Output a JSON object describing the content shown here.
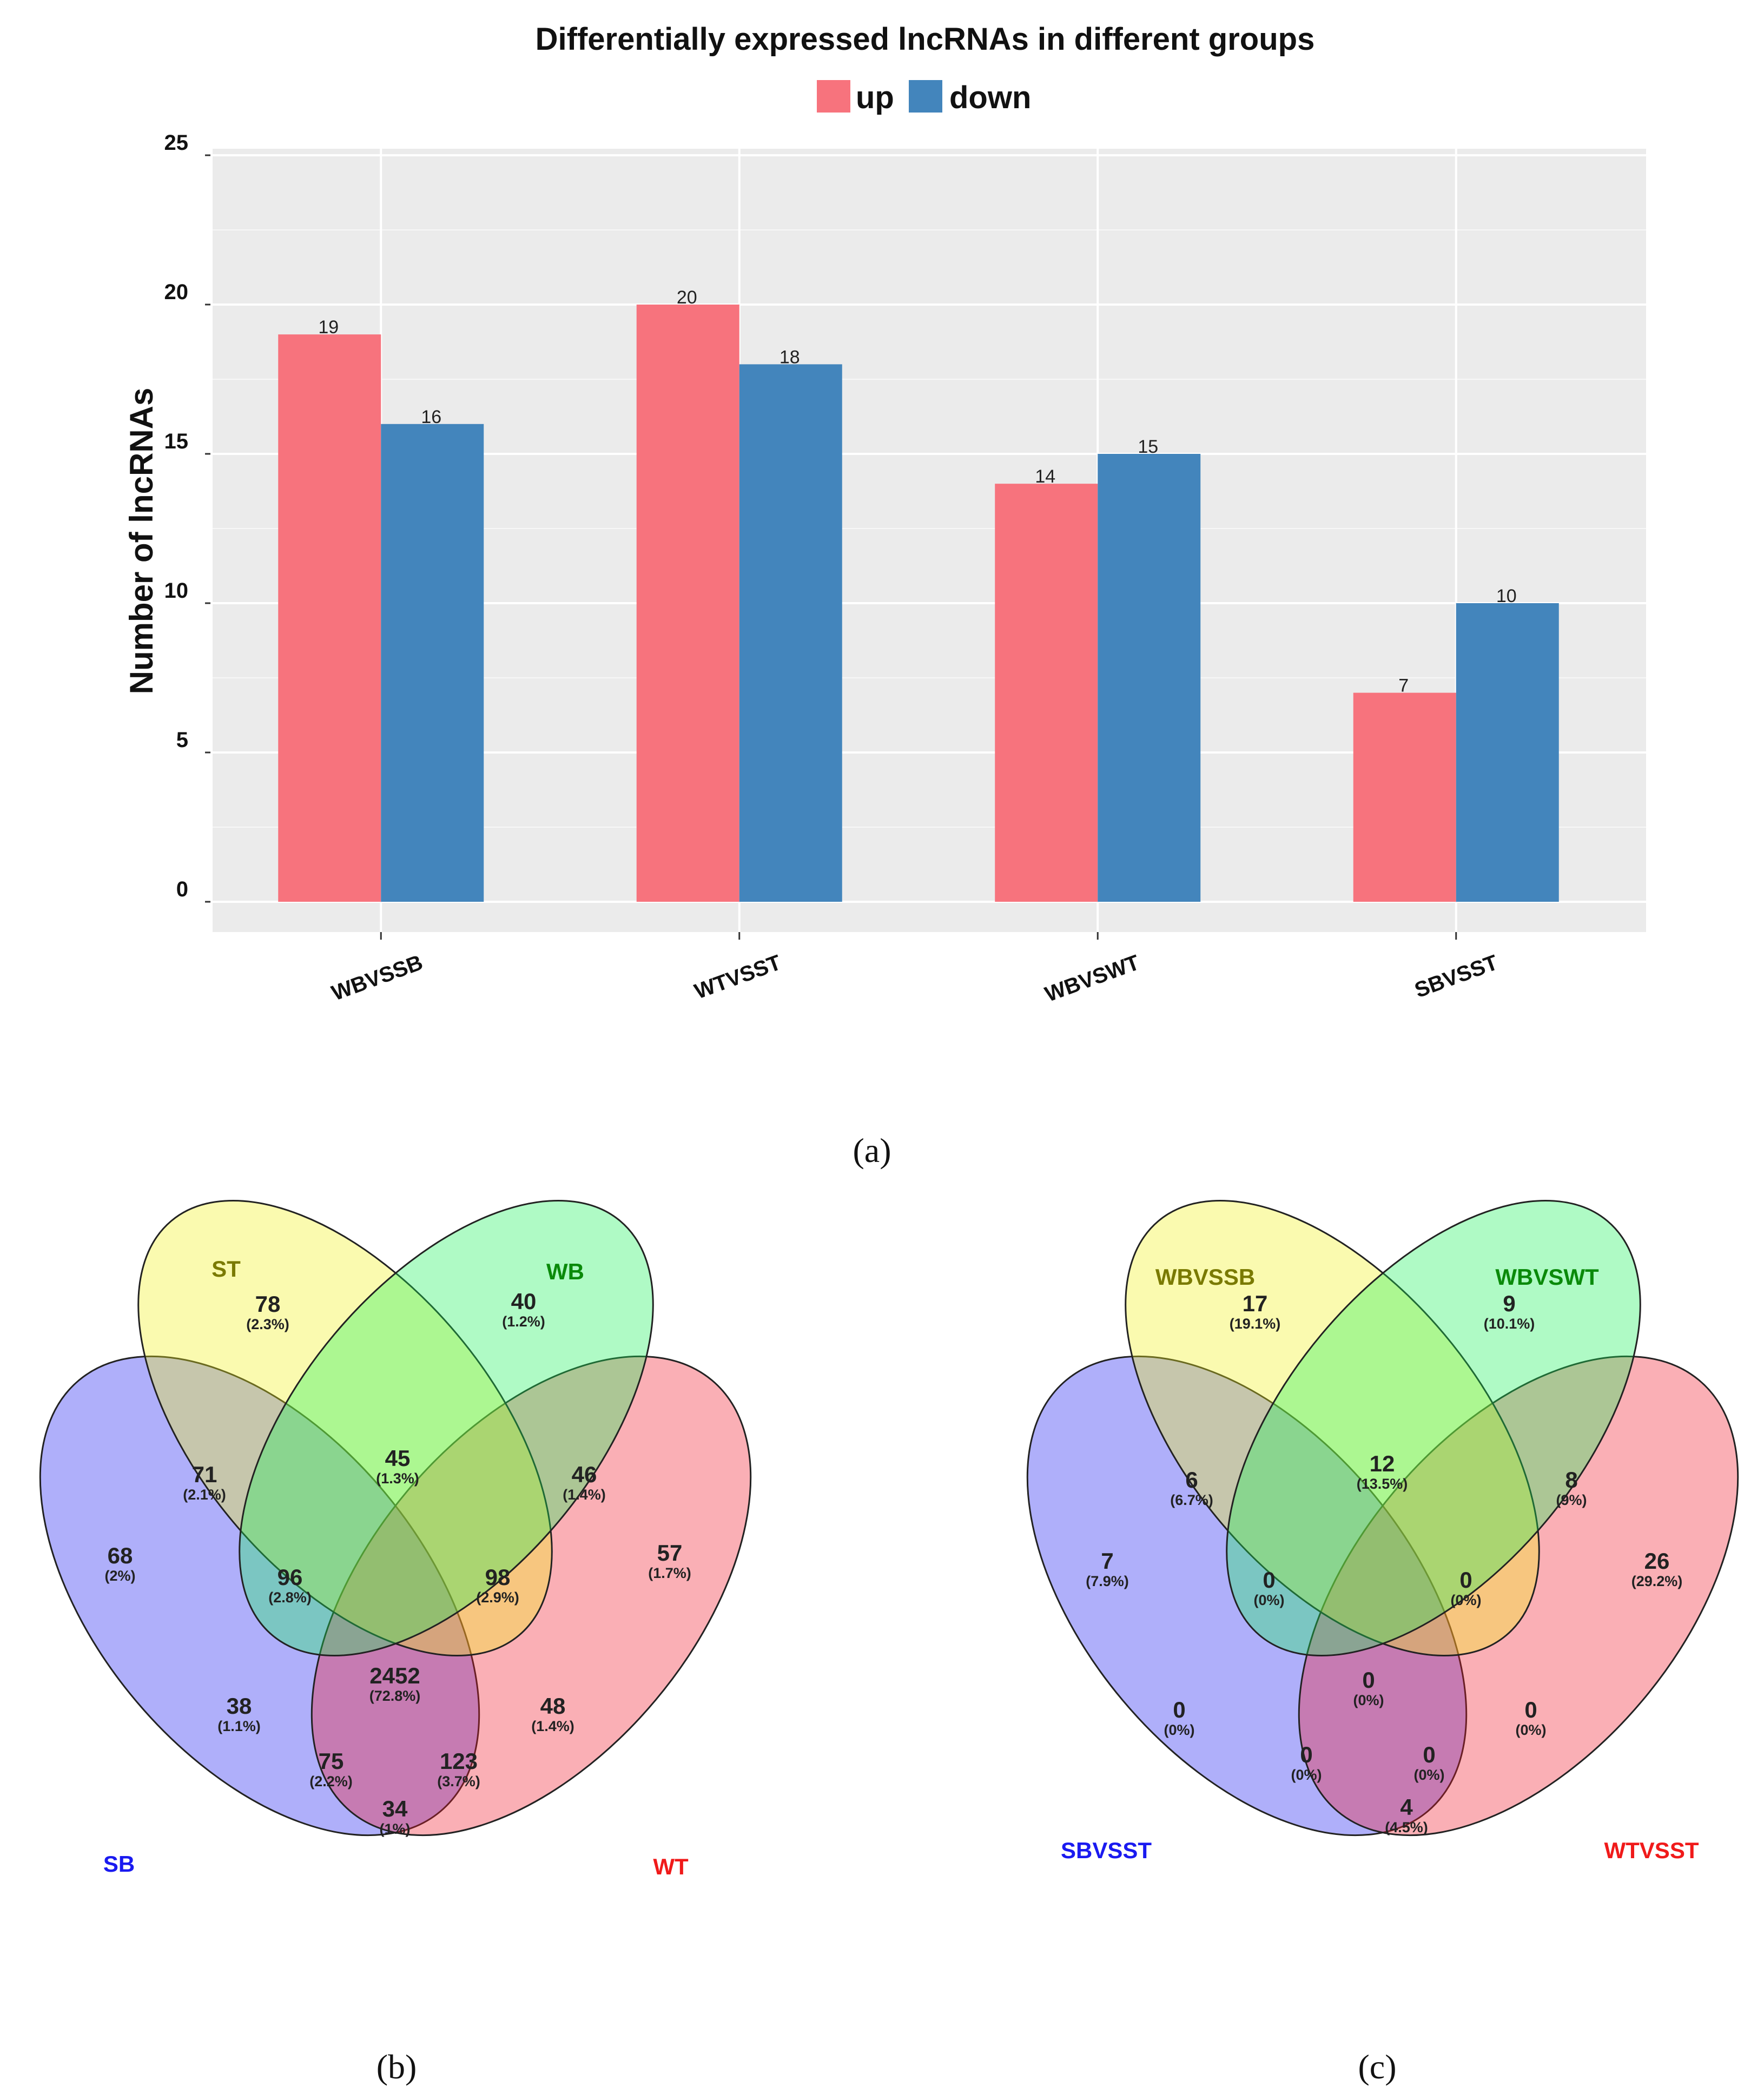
{
  "panels": {
    "a": "(a)",
    "b": "(b)",
    "c": "(c)"
  },
  "chart_data": [
    {
      "type": "bar",
      "title": "Differentially expressed lncRNAs in different groups",
      "xlabel": "",
      "ylabel": "Number of lncRNAs",
      "categories": [
        "WBVSSB",
        "WTVSST",
        "WBVSWT",
        "SBVSST"
      ],
      "series": [
        {
          "name": "up",
          "color": "#F7737D",
          "values": [
            19,
            20,
            14,
            7
          ]
        },
        {
          "name": "down",
          "color": "#4385BC",
          "values": [
            16,
            18,
            15,
            10
          ]
        }
      ],
      "ylim": [
        0,
        25
      ],
      "yticks": [
        0,
        5,
        10,
        15,
        20,
        25
      ],
      "grid": true,
      "legend": "top",
      "background": "#EBEBEB"
    },
    {
      "type": "venn",
      "sets": [
        {
          "name": "SB",
          "color": "#1A1AF0"
        },
        {
          "name": "ST",
          "color": "#7A7A00"
        },
        {
          "name": "WB",
          "color": "#0A8A0A"
        },
        {
          "name": "WT",
          "color": "#F01A1A"
        }
      ],
      "regions": {
        "ST_only": {
          "count": "78",
          "pct": "(2.3%)"
        },
        "WB_only": {
          "count": "40",
          "pct": "(1.2%)"
        },
        "SB_only": {
          "count": "68",
          "pct": "(2%)"
        },
        "WT_only": {
          "count": "57",
          "pct": "(1.7%)"
        },
        "SB_ST": {
          "count": "71",
          "pct": "(2.1%)"
        },
        "ST_WB": {
          "count": "45",
          "pct": "(1.3%)"
        },
        "WB_WT": {
          "count": "46",
          "pct": "(1.4%)"
        },
        "SB_ST_WB": {
          "count": "96",
          "pct": "(2.8%)"
        },
        "ST_WB_WT": {
          "count": "98",
          "pct": "(2.9%)"
        },
        "SB_WB": {
          "count": "38",
          "pct": "(1.1%)"
        },
        "ALL": {
          "count": "2452",
          "pct": "(72.8%)"
        },
        "ST_WT": {
          "count": "48",
          "pct": "(1.4%)"
        },
        "SB_WB_WT": {
          "count": "75",
          "pct": "(2.2%)"
        },
        "SB_ST_WT": {
          "count": "123",
          "pct": "(3.7%)"
        },
        "SB_WT": {
          "count": "34",
          "pct": "(1%)"
        }
      }
    },
    {
      "type": "venn",
      "sets": [
        {
          "name": "SBVSST",
          "color": "#1A1AF0"
        },
        {
          "name": "WBVSSB",
          "color": "#7A7A00"
        },
        {
          "name": "WBVSWT",
          "color": "#0A8A0A"
        },
        {
          "name": "WTVSST",
          "color": "#F01A1A"
        }
      ],
      "regions": {
        "ST_only": {
          "count": "17",
          "pct": "(19.1%)"
        },
        "WB_only": {
          "count": "9",
          "pct": "(10.1%)"
        },
        "SB_only": {
          "count": "7",
          "pct": "(7.9%)"
        },
        "WT_only": {
          "count": "26",
          "pct": "(29.2%)"
        },
        "SB_ST": {
          "count": "6",
          "pct": "(6.7%)"
        },
        "ST_WB": {
          "count": "12",
          "pct": "(13.5%)"
        },
        "WB_WT": {
          "count": "8",
          "pct": "(9%)"
        },
        "SB_ST_WB": {
          "count": "0",
          "pct": "(0%)"
        },
        "ST_WB_WT": {
          "count": "0",
          "pct": "(0%)"
        },
        "SB_WB": {
          "count": "0",
          "pct": "(0%)"
        },
        "ALL": {
          "count": "0",
          "pct": "(0%)"
        },
        "ST_WT": {
          "count": "0",
          "pct": "(0%)"
        },
        "SB_WB_WT": {
          "count": "0",
          "pct": "(0%)"
        },
        "SB_ST_WT": {
          "count": "0",
          "pct": "(0%)"
        },
        "SB_WT": {
          "count": "4",
          "pct": "(4.5%)"
        }
      }
    }
  ]
}
